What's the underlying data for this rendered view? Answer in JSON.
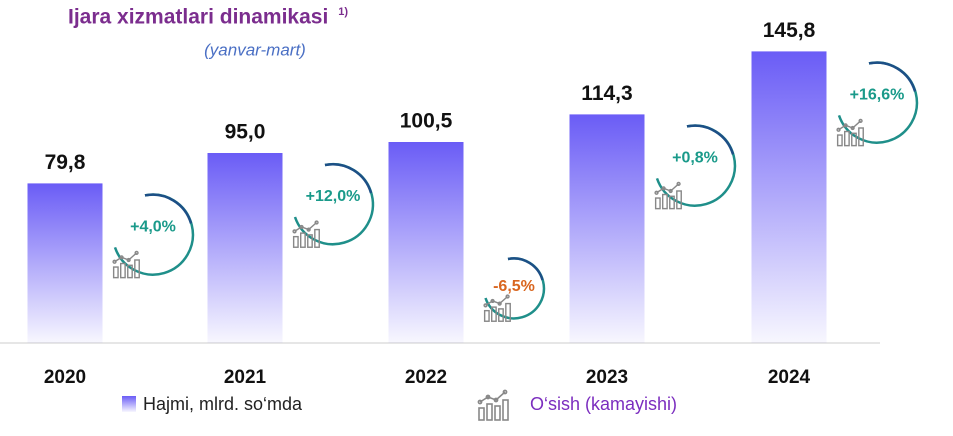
{
  "chart_data": {
    "type": "bar",
    "title": "Ijara xizmatlari dinamikasi",
    "title_note": "1)",
    "subtitle": "(yanvar-mart)",
    "categories": [
      "2020",
      "2021",
      "2022",
      "2023",
      "2024"
    ],
    "series": [
      {
        "name": "Hajmi, mlrd. so‘mda",
        "color": "#6a5cf6",
        "values": [
          79.8,
          95.0,
          100.5,
          114.3,
          145.8
        ],
        "value_labels": [
          "79,8",
          "95,0",
          "100,5",
          "114,3",
          "145,8"
        ]
      },
      {
        "name": "O‘sish (kamayishi)",
        "color": "#1a9a8a",
        "negative_color": "#d9661f",
        "values": [
          4.0,
          12.0,
          -6.5,
          0.8,
          16.6
        ],
        "value_labels": [
          "+4,0%",
          "+12,0%",
          "-6,5%",
          "+0,8%",
          "+16,6%"
        ]
      }
    ]
  }
}
